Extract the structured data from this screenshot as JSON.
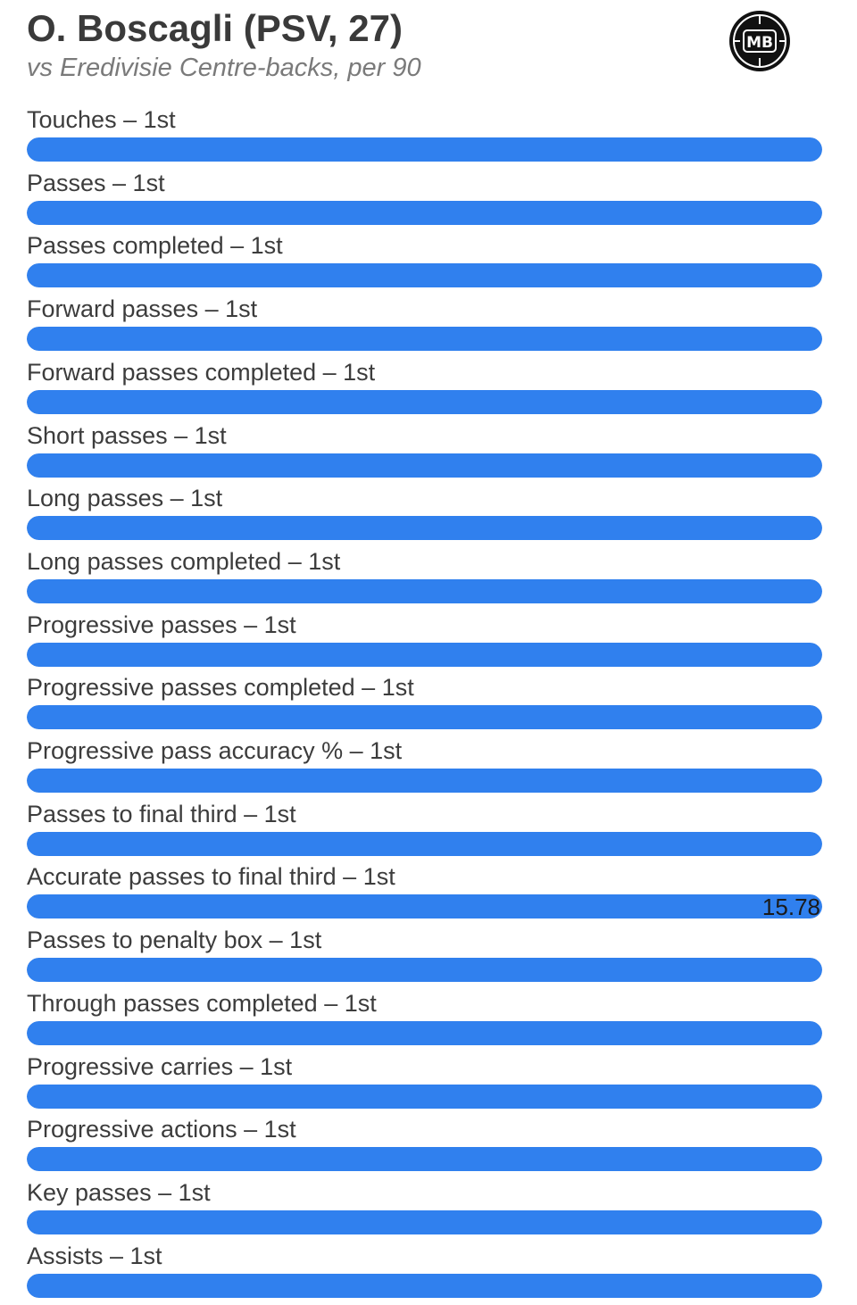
{
  "header": {
    "title": "O. Boscagli (PSV, 27)",
    "subtitle": "vs Eredivisie Centre-backs, per 90",
    "logo_text": "MB"
  },
  "colors": {
    "bar": "#3080ee",
    "track": "#e6e6e6",
    "title": "#3a3a3a",
    "subtitle": "#7a7a7a"
  },
  "chart_data": {
    "type": "bar",
    "orientation": "horizontal",
    "title": "O. Boscagli (PSV, 27)",
    "subtitle": "vs Eredivisie Centre-backs, per 90",
    "xlim": [
      0,
      1
    ],
    "grid": false,
    "legend": "none",
    "metrics": [
      {
        "label": "Touches – 1st",
        "fill": 1.0,
        "value_label": ""
      },
      {
        "label": "Passes – 1st",
        "fill": 1.0,
        "value_label": ""
      },
      {
        "label": "Passes completed – 1st",
        "fill": 1.0,
        "value_label": ""
      },
      {
        "label": "Forward passes – 1st",
        "fill": 1.0,
        "value_label": ""
      },
      {
        "label": "Forward passes completed – 1st",
        "fill": 1.0,
        "value_label": ""
      },
      {
        "label": "Short passes – 1st",
        "fill": 1.0,
        "value_label": ""
      },
      {
        "label": "Long passes – 1st",
        "fill": 1.0,
        "value_label": ""
      },
      {
        "label": "Long passes completed – 1st",
        "fill": 1.0,
        "value_label": ""
      },
      {
        "label": "Progressive passes – 1st",
        "fill": 1.0,
        "value_label": ""
      },
      {
        "label": "Progressive passes completed – 1st",
        "fill": 1.0,
        "value_label": ""
      },
      {
        "label": "Progressive pass accuracy % – 1st",
        "fill": 1.0,
        "value_label": ""
      },
      {
        "label": "Passes to final third – 1st",
        "fill": 1.0,
        "value_label": ""
      },
      {
        "label": "Accurate passes to final third – 1st",
        "fill": 1.0,
        "value_label": "15.78"
      },
      {
        "label": "Passes to penalty box – 1st",
        "fill": 1.0,
        "value_label": ""
      },
      {
        "label": "Through passes completed – 1st",
        "fill": 1.0,
        "value_label": ""
      },
      {
        "label": "Progressive carries – 1st",
        "fill": 1.0,
        "value_label": ""
      },
      {
        "label": "Progressive actions – 1st",
        "fill": 1.0,
        "value_label": ""
      },
      {
        "label": "Key passes – 1st",
        "fill": 1.0,
        "value_label": ""
      },
      {
        "label": "Assists – 1st",
        "fill": 1.0,
        "value_label": ""
      }
    ]
  }
}
